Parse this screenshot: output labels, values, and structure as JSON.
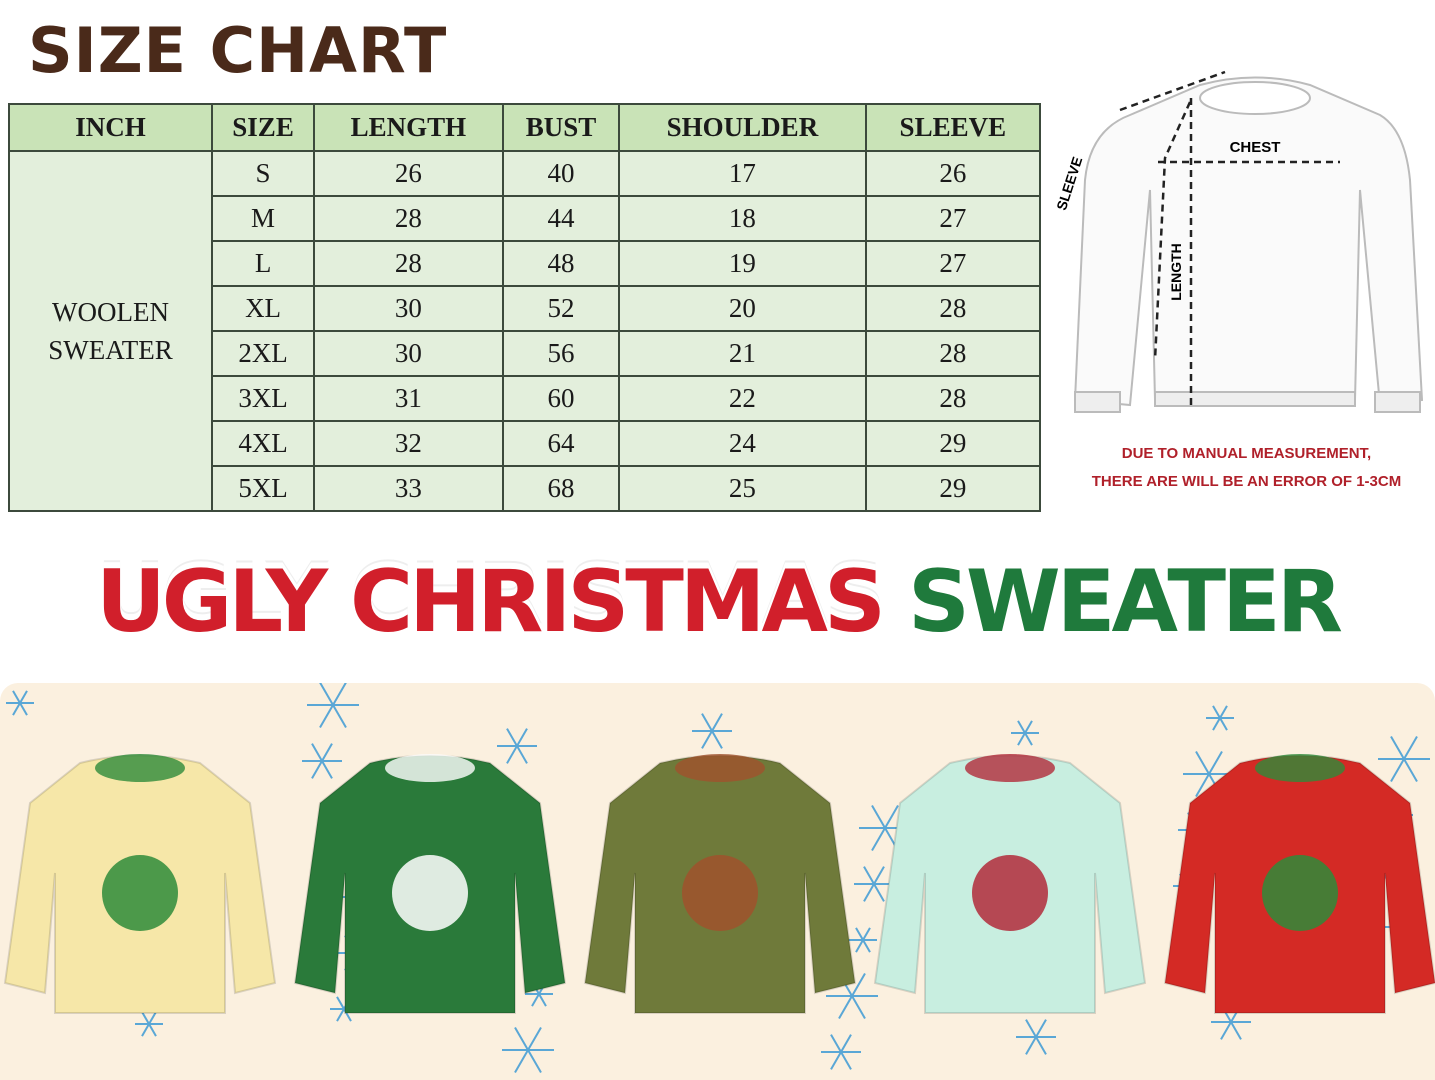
{
  "title": "SIZE CHART",
  "table": {
    "headers": [
      "INCH",
      "SIZE",
      "LENGTH",
      "BUST",
      "SHOULDER",
      "SLEEVE"
    ],
    "group_label_line1": "WOOLEN",
    "group_label_line2": "SWEATER",
    "rows": [
      [
        "S",
        "26",
        "40",
        "17",
        "26"
      ],
      [
        "M",
        "28",
        "44",
        "18",
        "27"
      ],
      [
        "L",
        "28",
        "48",
        "19",
        "27"
      ],
      [
        "XL",
        "30",
        "52",
        "20",
        "28"
      ],
      [
        "2XL",
        "30",
        "56",
        "21",
        "28"
      ],
      [
        "3XL",
        "31",
        "60",
        "22",
        "28"
      ],
      [
        "4XL",
        "32",
        "64",
        "24",
        "29"
      ],
      [
        "5XL",
        "33",
        "68",
        "25",
        "29"
      ]
    ]
  },
  "diagram": {
    "chest": "CHEST",
    "length": "LENGTH",
    "sleeve": "SLEEVE"
  },
  "note": {
    "line1": "DUE TO MANUAL MEASUREMENT,",
    "line2": "THERE ARE WILL BE AN ERROR OF 1-3CM"
  },
  "banner": {
    "red_text": "UGLY CHRISTMAS",
    "green_text": "SWEATER"
  },
  "colors": {
    "header_green": "#c9e3b7",
    "cell_green": "#e3efdc",
    "title_brown": "#4a2a1a",
    "note_red": "#b0202a",
    "banner_red": "#d11f2b",
    "banner_green": "#1f7a3c",
    "band_cream": "#fbf0df"
  },
  "sweaters": [
    {
      "color": "#f6e7a8",
      "accent": "#2e8b3a"
    },
    {
      "color": "#2a7a3a",
      "accent": "#ffffff"
    },
    {
      "color": "#6f7a3a",
      "accent": "#a0522d"
    },
    {
      "color": "#c8eee0",
      "accent": "#b22a3a"
    },
    {
      "color": "#d42a25",
      "accent": "#2e8b3a"
    }
  ]
}
